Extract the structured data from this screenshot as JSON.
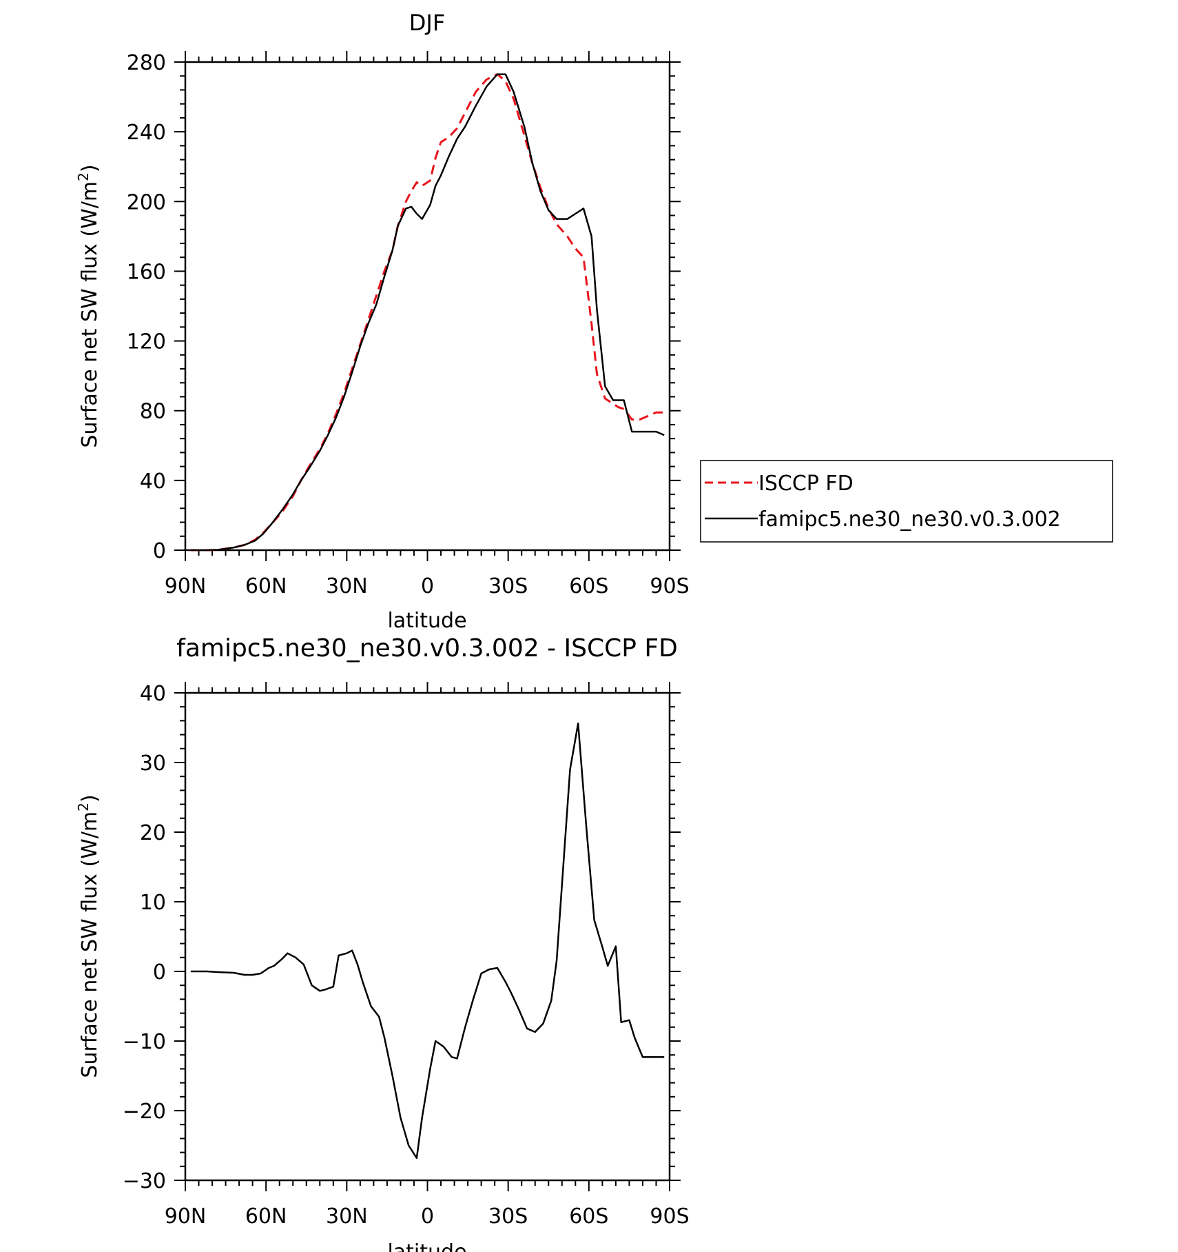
{
  "chart_data": [
    {
      "type": "line",
      "title": "DJF",
      "xlabel": "latitude",
      "ylabel": "Surface net SW flux (W/m",
      "ylabel_sup": "2",
      "ylabel_close": ")",
      "xlim": [
        -90,
        90
      ],
      "ylim": [
        0,
        280
      ],
      "x_ticks": [
        -90,
        -60,
        -30,
        0,
        30,
        60,
        90
      ],
      "x_tick_labels": [
        "90N",
        "60N",
        "30N",
        "0",
        "30S",
        "60S",
        "90S"
      ],
      "y_ticks": [
        0,
        40,
        80,
        120,
        160,
        200,
        240,
        280
      ],
      "y_tick_labels": [
        "0",
        "40",
        "80",
        "120",
        "160",
        "200",
        "240",
        "280"
      ],
      "legend": {
        "placement": "right"
      },
      "series": [
        {
          "name": "ISCCP FD",
          "color": "#e8141c",
          "dash": true,
          "x": [
            -88,
            -82,
            -78,
            -72,
            -68,
            -64,
            -61,
            -58,
            -54,
            -50,
            -47,
            -44,
            -40,
            -37,
            -34,
            -31,
            -28,
            -25,
            -22,
            -19,
            -16,
            -13,
            -11,
            -8,
            -6,
            -4,
            -2,
            1,
            3,
            5,
            8,
            11,
            14,
            18,
            22,
            26,
            29,
            32,
            36,
            39,
            42,
            45,
            48,
            52,
            55,
            58,
            61,
            63,
            66,
            69,
            71,
            73,
            76,
            79,
            82,
            85,
            88
          ],
          "y": [
            0,
            0,
            0.2,
            1.5,
            3,
            6,
            10,
            15,
            22,
            31,
            40,
            48,
            58,
            67,
            78,
            90,
            104,
            118,
            132,
            146,
            160,
            172,
            186,
            200,
            206,
            211,
            209,
            212,
            225,
            234,
            237,
            242,
            251,
            263,
            270,
            273,
            269,
            259,
            238,
            222,
            208,
            196,
            187,
            180,
            173,
            168,
            130,
            101,
            87,
            84,
            82,
            81,
            75,
            75,
            77,
            79,
            79
          ]
        },
        {
          "name": "famipc5.ne30_ne30.v0.3.002",
          "color": "#000000",
          "dash": false,
          "x": [
            -88,
            -82,
            -78,
            -72,
            -68,
            -64,
            -61,
            -58,
            -54,
            -50,
            -47,
            -44,
            -40,
            -37,
            -34,
            -31,
            -28,
            -25,
            -22,
            -19,
            -16,
            -13,
            -11,
            -8,
            -6,
            -4,
            -2,
            1,
            3,
            5,
            8,
            11,
            14,
            18,
            22,
            26,
            29,
            32,
            36,
            39,
            42,
            45,
            48,
            52,
            55,
            58,
            61,
            63,
            66,
            69,
            71,
            73,
            76,
            79,
            82,
            85,
            88
          ],
          "y": [
            0,
            0,
            0.2,
            1.5,
            3,
            5.5,
            9.5,
            15,
            23,
            32,
            40,
            47,
            57,
            66,
            76,
            88,
            102,
            117,
            130,
            141,
            157,
            172,
            186,
            196,
            197,
            193,
            190,
            198,
            209,
            215,
            226,
            236,
            243,
            255,
            266,
            273,
            273,
            263,
            243,
            222,
            206,
            195,
            190,
            190,
            193,
            196,
            180,
            138,
            94,
            86,
            86,
            86,
            68,
            68,
            68,
            68,
            66
          ]
        }
      ]
    },
    {
      "type": "line",
      "title": "famipc5.ne30_ne30.v0.3.002 - ISCCP FD",
      "xlabel": "latitude",
      "ylabel": "Surface net SW flux (W/m",
      "ylabel_sup": "2",
      "ylabel_close": ")",
      "xlim": [
        -90,
        90
      ],
      "ylim": [
        -30,
        40
      ],
      "x_ticks": [
        -90,
        -60,
        -30,
        0,
        30,
        60,
        90
      ],
      "x_tick_labels": [
        "90N",
        "60N",
        "30N",
        "0",
        "30S",
        "60S",
        "90S"
      ],
      "y_ticks": [
        -30,
        -20,
        -10,
        0,
        10,
        20,
        30,
        40
      ],
      "y_tick_labels": [
        "−30",
        "−20",
        "−10",
        "0",
        "10",
        "20",
        "30",
        "40"
      ],
      "series": [
        {
          "color": "#000000",
          "dash": false,
          "x": [
            -88,
            -82,
            -78,
            -72,
            -68,
            -65,
            -62,
            -59,
            -57,
            -54,
            -52,
            -49,
            -46,
            -43,
            -40,
            -38,
            -35,
            -33,
            -30,
            -28,
            -26,
            -24,
            -21,
            -18,
            -16,
            -13,
            -10,
            -7,
            -4,
            -2,
            1,
            3,
            6,
            9,
            11,
            14,
            17,
            20,
            23,
            26,
            29,
            31,
            34,
            37,
            40,
            43,
            46,
            48,
            51,
            53,
            56,
            59,
            62,
            65,
            67,
            70,
            72,
            75,
            77,
            80,
            82,
            84,
            86,
            88
          ],
          "y": [
            0,
            0,
            -0.1,
            -0.2,
            -0.5,
            -0.5,
            -0.3,
            0.5,
            0.8,
            1.8,
            2.6,
            2,
            1,
            -2,
            -2.8,
            -2.6,
            -2.2,
            2.3,
            2.6,
            3,
            1,
            -1.6,
            -5,
            -6.5,
            -9.5,
            -15,
            -21,
            -25,
            -26.8,
            -21,
            -14,
            -10,
            -10.8,
            -12.3,
            -12.5,
            -8,
            -4,
            -0.3,
            0.3,
            0.5,
            -1.5,
            -3,
            -5.5,
            -8.2,
            -8.7,
            -7.5,
            -4.2,
            1.5,
            18,
            29,
            35.6,
            21,
            7.4,
            3.5,
            0.8,
            3.6,
            -7.3,
            -7,
            -9.5,
            -12.3,
            -12.3,
            -12.3,
            -12.3,
            -12.3
          ]
        }
      ]
    }
  ]
}
